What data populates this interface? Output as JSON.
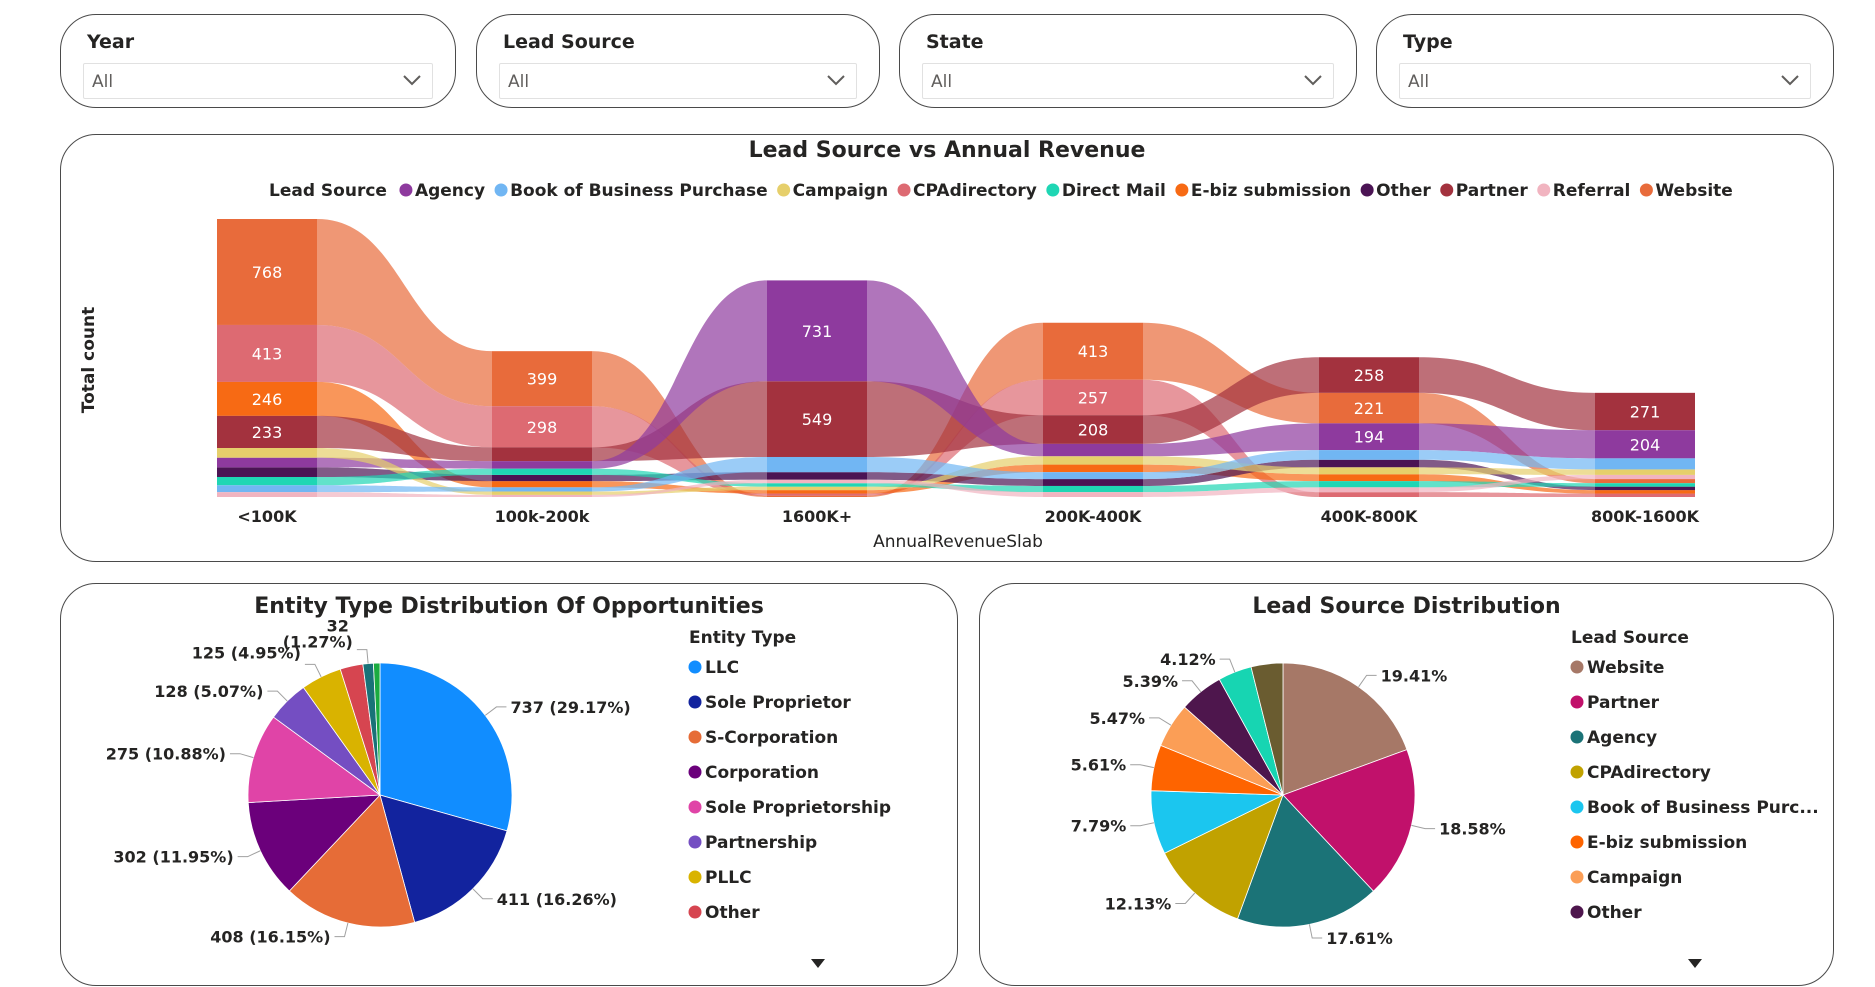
{
  "filters": [
    {
      "title": "Year",
      "value": "All"
    },
    {
      "title": "Lead Source",
      "value": "All"
    },
    {
      "title": "State",
      "value": "All"
    },
    {
      "title": "Type",
      "value": "All"
    }
  ],
  "ribbon": {
    "title": "Lead Source vs Annual Revenue",
    "legend_title": "Lead Source",
    "ylabel": "Total count",
    "xlabel": "AnnualRevenueSlab"
  },
  "pie1": {
    "title": "Entity Type Distribution Of Opportunities",
    "legend_title": "Entity Type",
    "legend_items": [
      "LLC",
      "Sole Proprietor",
      "S-Corporation",
      "Corporation",
      "Sole Proprietorship",
      "Partnership",
      "PLLC",
      "Other"
    ]
  },
  "pie2": {
    "title": "Lead Source Distribution",
    "legend_title": "Lead Source",
    "legend_items": [
      "Website",
      "Partner",
      "Agency",
      "CPAdirectory",
      "Book of Business Purc...",
      "E-biz submission",
      "Campaign",
      "Other"
    ]
  },
  "colors": {
    "Agency": "#8e3a9e",
    "Book of Business Purchase": "#71b6f3",
    "Campaign": "#e6cf6b",
    "CPAdirectory": "#dd6a72",
    "Direct Mail": "#1fd6b4",
    "E-biz submission": "#f76a14",
    "Other": "#4b1454",
    "Partner": "#a3323e",
    "Referral": "#f1b4c0",
    "Website": "#e86b3b"
  },
  "chart_data": [
    {
      "type": "ribbon",
      "title": "Lead Source vs Annual Revenue",
      "xlabel": "AnnualRevenueSlab",
      "ylabel": "Total count",
      "legend_title": "Lead Source",
      "legend_position": "top",
      "categories": [
        "<100K",
        "100k-200k",
        "1600K+",
        "200K-400K",
        "400K-800K",
        "800K-1600K"
      ],
      "series": [
        {
          "name": "Website",
          "values": [
            768,
            399,
            10,
            413,
            221,
            30
          ],
          "labels": [
            true,
            true,
            false,
            true,
            true,
            false
          ]
        },
        {
          "name": "CPAdirectory",
          "values": [
            413,
            298,
            15,
            257,
            35,
            25
          ],
          "labels": [
            true,
            true,
            false,
            true,
            false,
            false
          ]
        },
        {
          "name": "E-biz submission",
          "values": [
            246,
            45,
            25,
            55,
            50,
            25
          ],
          "labels": [
            true,
            false,
            false,
            false,
            false,
            false
          ]
        },
        {
          "name": "Partner",
          "values": [
            233,
            100,
            549,
            208,
            258,
            271
          ],
          "labels": [
            true,
            false,
            true,
            true,
            true,
            true
          ]
        },
        {
          "name": "Other",
          "values": [
            70,
            45,
            55,
            50,
            55,
            25
          ],
          "labels": [
            false,
            false,
            false,
            false,
            false,
            false
          ]
        },
        {
          "name": "Agency",
          "values": [
            70,
            55,
            731,
            90,
            194,
            204
          ],
          "labels": [
            false,
            false,
            true,
            false,
            true,
            true
          ]
        },
        {
          "name": "Campaign",
          "values": [
            70,
            25,
            25,
            60,
            50,
            40
          ],
          "labels": [
            false,
            false,
            false,
            false,
            false,
            false
          ]
        },
        {
          "name": "Direct Mail",
          "values": [
            60,
            45,
            25,
            45,
            45,
            25
          ],
          "labels": [
            false,
            false,
            false,
            false,
            false,
            false
          ]
        },
        {
          "name": "Book of Business Purchase",
          "values": [
            50,
            30,
            110,
            50,
            70,
            80
          ],
          "labels": [
            false,
            false,
            false,
            false,
            false,
            false
          ]
        },
        {
          "name": "Referral",
          "values": [
            35,
            15,
            25,
            35,
            35,
            30
          ],
          "labels": [
            false,
            false,
            false,
            false,
            false,
            false
          ]
        }
      ]
    },
    {
      "type": "pie",
      "title": "Entity Type Distribution Of Opportunities",
      "legend_title": "Entity Type",
      "slices": [
        {
          "label": "LLC",
          "value": 737,
          "percent": "29.17%",
          "color": "#118dff"
        },
        {
          "label": "Sole Proprietor",
          "value": 411,
          "percent": "16.26%",
          "color": "#12239e"
        },
        {
          "label": "S-Corporation",
          "value": 408,
          "percent": "16.15%",
          "color": "#e66c37"
        },
        {
          "label": "Corporation",
          "value": 302,
          "percent": "11.95%",
          "color": "#6b007b"
        },
        {
          "label": "Sole Proprietorship",
          "value": 275,
          "percent": "10.88%",
          "color": "#e044a7"
        },
        {
          "label": "Partnership",
          "value": 128,
          "percent": "5.07%",
          "color": "#744ec2"
        },
        {
          "label": "PLLC",
          "value": 125,
          "percent": "4.95%",
          "color": "#d9b300"
        },
        {
          "label": "Other",
          "value": 70,
          "percent": "",
          "color": "#d64550"
        },
        {
          "label": "",
          "value": 32,
          "percent": "1.27%",
          "color": "#197278"
        },
        {
          "label": "",
          "value": 20,
          "percent": "",
          "color": "#1aab40"
        }
      ]
    },
    {
      "type": "pie",
      "title": "Lead Source Distribution",
      "legend_title": "Lead Source",
      "slices": [
        {
          "label": "Website",
          "value": 19.41,
          "percent": "19.41%",
          "color": "#a67867"
        },
        {
          "label": "Partner",
          "value": 18.58,
          "percent": "18.58%",
          "color": "#c1116b"
        },
        {
          "label": "Agency",
          "value": 17.61,
          "percent": "17.61%",
          "color": "#1b7377"
        },
        {
          "label": "CPAdirectory",
          "value": 12.13,
          "percent": "12.13%",
          "color": "#c1a200"
        },
        {
          "label": "Book of Business Purc...",
          "value": 7.79,
          "percent": "7.79%",
          "color": "#1bc6ef"
        },
        {
          "label": "E-biz submission",
          "value": 5.61,
          "percent": "5.61%",
          "color": "#fe6400"
        },
        {
          "label": "Campaign",
          "value": 5.47,
          "percent": "5.47%",
          "color": "#fb9e56"
        },
        {
          "label": "Other",
          "value": 5.39,
          "percent": "5.39%",
          "color": "#4e164d"
        },
        {
          "label": "",
          "value": 4.12,
          "percent": "4.12%",
          "color": "#17d5b2"
        },
        {
          "label": "",
          "value": 3.89,
          "percent": "",
          "color": "#6a5c30"
        }
      ]
    }
  ]
}
